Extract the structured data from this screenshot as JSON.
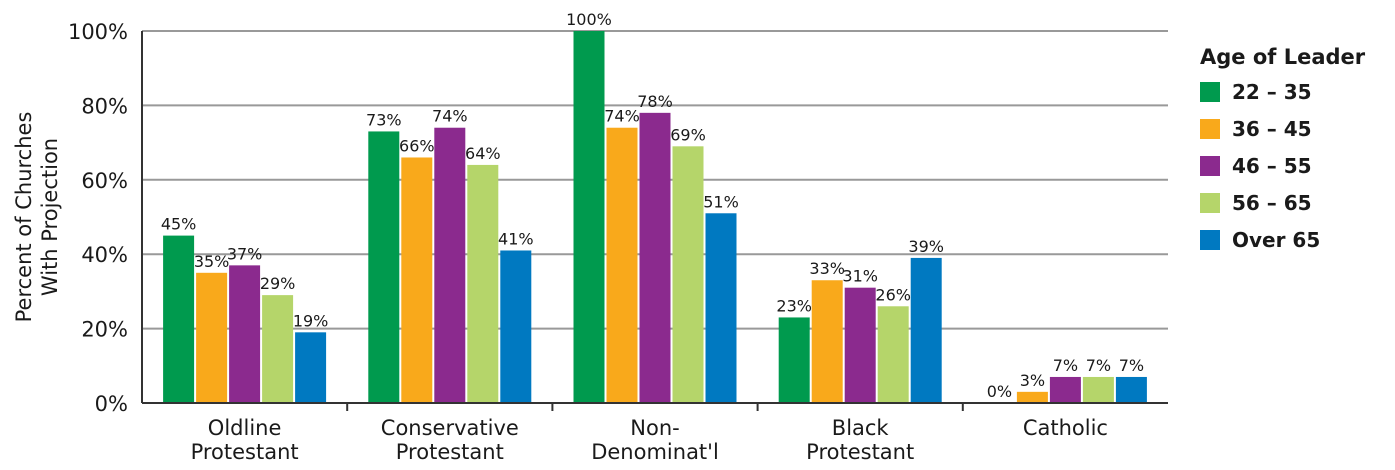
{
  "chart_data": {
    "type": "bar",
    "title": "",
    "ylabel": [
      "Percent of Churches",
      "With Projection"
    ],
    "xlabel": "",
    "ylim": [
      0,
      100
    ],
    "yticks": [
      "0%",
      "20%",
      "40%",
      "60%",
      "80%",
      "100%"
    ],
    "grid": true,
    "legend_position": "right",
    "legend_title": "Age of Leader",
    "categories": [
      [
        "Oldline",
        "Protestant"
      ],
      [
        "Conservative",
        "Protestant"
      ],
      [
        "Non-",
        "Denominat'l"
      ],
      [
        "Black",
        "Protestant"
      ],
      [
        "Catholic"
      ]
    ],
    "series": [
      {
        "name": "22 – 35",
        "color": "#009a4e",
        "values": [
          45,
          73,
          100,
          23,
          0
        ],
        "labels": [
          "45%",
          "73%",
          "100%",
          "23%",
          "0%"
        ]
      },
      {
        "name": "36 – 45",
        "color": "#f9a91b",
        "values": [
          35,
          66,
          74,
          33,
          3
        ],
        "labels": [
          "35%",
          "66%",
          "74%",
          "33%",
          "3%"
        ]
      },
      {
        "name": "46 – 55",
        "color": "#8b2a8e",
        "values": [
          37,
          74,
          78,
          31,
          7
        ],
        "labels": [
          "37%",
          "74%",
          "78%",
          "31%",
          "7%"
        ]
      },
      {
        "name": "56 – 65",
        "color": "#b5d56a",
        "values": [
          29,
          64,
          69,
          26,
          7
        ],
        "labels": [
          "29%",
          "64%",
          "69%",
          "26%",
          "7%"
        ]
      },
      {
        "name": "Over 65",
        "color": "#0079c1",
        "values": [
          19,
          41,
          51,
          39,
          7
        ],
        "labels": [
          "19%",
          "41%",
          "51%",
          "39%",
          "7%"
        ]
      }
    ]
  }
}
